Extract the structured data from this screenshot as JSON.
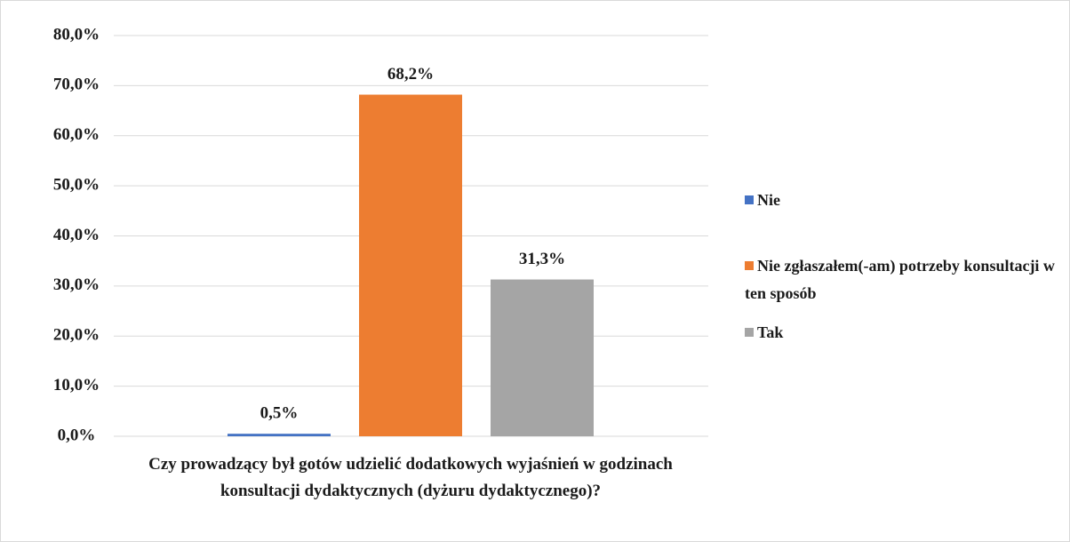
{
  "chart_data": {
    "type": "bar",
    "categories": [
      "Czy  prowadzący był gotów udzielić dodatkowych wyjaśnień w godzinach konsultacji dydaktycznych (dyżuru dydaktycznego)?"
    ],
    "series": [
      {
        "name": "Nie",
        "color": "#4472c4",
        "values": [
          0.5
        ],
        "value_labels": [
          "0,5%"
        ]
      },
      {
        "name": "Nie zgłaszałem(-am) potrzeby konsultacji w ten sposób",
        "color": "#ed7d31",
        "values": [
          68.2
        ],
        "value_labels": [
          "68,2%"
        ]
      },
      {
        "name": "Tak",
        "color": "#a5a5a5",
        "values": [
          31.3
        ],
        "value_labels": [
          "31,3%"
        ]
      }
    ],
    "ylim": [
      0,
      80
    ],
    "yticks": [
      {
        "value": 0,
        "label": "0,0%"
      },
      {
        "value": 10,
        "label": "10,0%"
      },
      {
        "value": 20,
        "label": "20,0%"
      },
      {
        "value": 30,
        "label": "30,0%"
      },
      {
        "value": 40,
        "label": "40,0%"
      },
      {
        "value": 50,
        "label": "50,0%"
      },
      {
        "value": 60,
        "label": "60,0%"
      },
      {
        "value": 70,
        "label": "70,0%"
      },
      {
        "value": 80,
        "label": "80,0%"
      }
    ],
    "grid": true,
    "legend": "right"
  }
}
